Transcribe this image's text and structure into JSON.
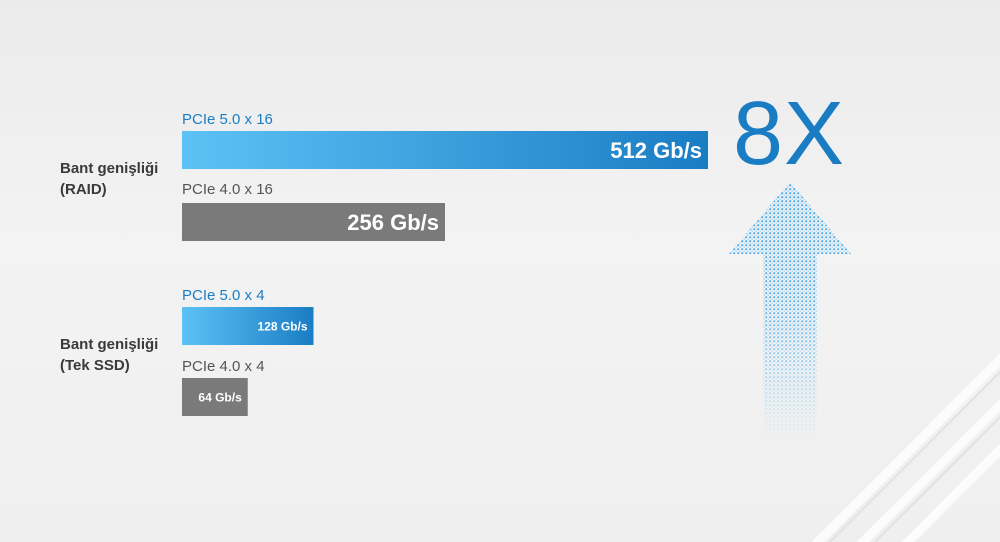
{
  "chart_data": {
    "type": "bar",
    "orientation": "horizontal",
    "title": "",
    "groups": [
      {
        "label_line1": "Bant genişliği",
        "label_line2": "(RAID)",
        "bars": [
          {
            "series": "PCIe 5.0 x 16",
            "value": 512,
            "value_label": "512 Gb/s",
            "color": "#1a7dc4"
          },
          {
            "series": "PCIe 4.0 x 16",
            "value": 256,
            "value_label": "256 Gb/s",
            "color": "#7a7a7a"
          }
        ]
      },
      {
        "label_line1": "Bant genişliği",
        "label_line2": "(Tek SSD)",
        "bars": [
          {
            "series": "PCIe 5.0 x 4",
            "value": 128,
            "value_label": "128 Gb/s",
            "color": "#1a7dc4"
          },
          {
            "series": "PCIe 4.0 x 4",
            "value": 64,
            "value_label": "64 Gb/s",
            "color": "#7a7a7a"
          }
        ]
      }
    ],
    "unit": "Gb/s"
  },
  "multiplier": "8X",
  "colors": {
    "accent_blue": "#1a7dc4",
    "light_blue": "#5cc2f5",
    "gray_bar": "#7a7a7a",
    "label_gray": "#555555"
  },
  "icons": {
    "arrow": "dotted-up-arrow-icon"
  }
}
